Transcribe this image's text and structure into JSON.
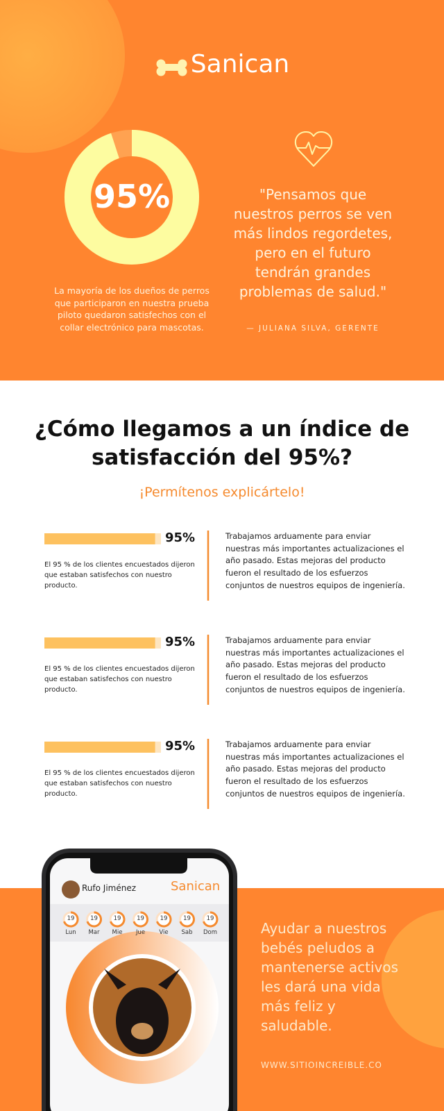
{
  "header": {
    "brand": "Sanican"
  },
  "hero": {
    "stat": {
      "value": 95,
      "label": "95%"
    },
    "description": "La mayoría de los dueños de perros que participaron en nuestra prueba piloto quedaron satisfechos con el collar electrónico para mascotas.",
    "quote": "\"Pensamos que nuestros perros se ven más lindos regordetes, pero en el futuro tendrán grandes problemas de salud.\"",
    "attribution": "— JULIANA SILVA, GERENTE"
  },
  "section": {
    "title": "¿Cómo llegamos a un índice de satisfacción del 95%?",
    "subtitle": "¡Permítenos explicártelo!",
    "rows": [
      {
        "value": 95,
        "label": "95%",
        "caption": "El 95 % de los clientes encuestados dijeron que estaban satisfechos con nuestro producto.",
        "text": "Trabajamos arduamente para enviar nuestras más importantes actualizaciones el año pasado. Estas mejoras del producto fueron el resultado de los esfuerzos conjuntos de nuestros equipos de ingeniería."
      },
      {
        "value": 95,
        "label": "95%",
        "caption": "El 95 % de los clientes encuestados dijeron que estaban satisfechos con nuestro producto.",
        "text": "Trabajamos arduamente para enviar nuestras más importantes actualizaciones el año pasado. Estas mejoras del producto fueron el resultado de los esfuerzos conjuntos de nuestros equipos de ingeniería."
      },
      {
        "value": 95,
        "label": "95%",
        "caption": "El 95 % de los clientes encuestados dijeron que estaban satisfechos con nuestro producto.",
        "text": "Trabajamos arduamente para enviar nuestras más importantes actualizaciones el año pasado. Estas mejoras del producto fueron el resultado de los esfuerzos conjuntos de nuestros equipos de ingeniería."
      }
    ]
  },
  "app": {
    "user": "Rufo Jiménez",
    "brand": "Sanican",
    "days": [
      {
        "date": "19",
        "day": "Lun"
      },
      {
        "date": "19",
        "day": "Mar"
      },
      {
        "date": "19",
        "day": "Mie"
      },
      {
        "date": "19",
        "day": "Jue"
      },
      {
        "date": "19",
        "day": "Vie"
      },
      {
        "date": "19",
        "day": "Sab"
      },
      {
        "date": "19",
        "day": "Dom"
      }
    ]
  },
  "footer": {
    "text": "Ayudar a nuestros bebés peludos a mantenerse activos les dará una vida más feliz y saludable.",
    "url": "WWW.SITIOINCREIBLE.CO"
  }
}
